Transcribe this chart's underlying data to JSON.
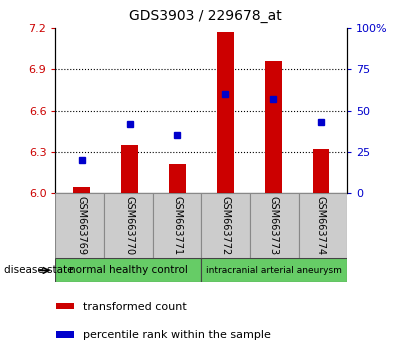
{
  "title": "GDS3903 / 229678_at",
  "samples": [
    "GSM663769",
    "GSM663770",
    "GSM663771",
    "GSM663772",
    "GSM663773",
    "GSM663774"
  ],
  "red_values": [
    6.04,
    6.35,
    6.21,
    7.17,
    6.96,
    6.32
  ],
  "blue_percentiles": [
    20,
    42,
    35,
    60,
    57,
    43
  ],
  "ylim_left": [
    6.0,
    7.2
  ],
  "ylim_right": [
    0,
    100
  ],
  "yticks_left": [
    6.0,
    6.3,
    6.6,
    6.9,
    7.2
  ],
  "yticks_right": [
    0,
    25,
    50,
    75,
    100
  ],
  "grid_values": [
    6.3,
    6.6,
    6.9
  ],
  "bar_color": "#cc0000",
  "blue_color": "#0000cc",
  "bar_width": 0.35,
  "baseline": 6.0,
  "group1_label": "normal healthy control",
  "group2_label": "intracranial arterial aneurysm",
  "group1_color": "#66cc66",
  "group2_color": "#66cc66",
  "sample_bg_color": "#cccccc",
  "disease_state_label": "disease state",
  "legend_red": "transformed count",
  "legend_blue": "percentile rank within the sample",
  "tick_color_left": "#cc0000",
  "tick_color_right": "#0000cc",
  "title_fontsize": 10
}
